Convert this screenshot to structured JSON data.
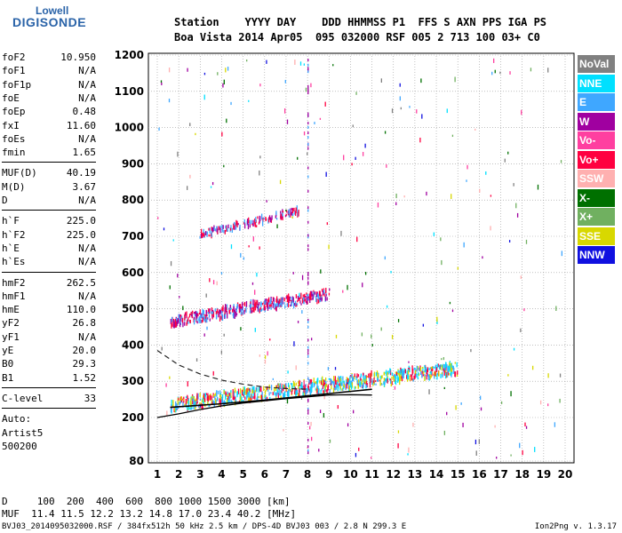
{
  "logo": {
    "line1": "Lowell",
    "line2": "DIGISONDE"
  },
  "header": {
    "row1": "Station    YYYY DAY    DDD HHMMSS P1  FFS S AXN PPS IGA PS",
    "row2": "Boa Vista 2014 Apr05  095 032000 RSF 005 2 713 100 03+ C0"
  },
  "params_group1": [
    {
      "name": "foF2",
      "value": "10.950"
    },
    {
      "name": "foF1",
      "value": "N/A"
    },
    {
      "name": "foF1p",
      "value": "N/A"
    },
    {
      "name": "foE",
      "value": "N/A"
    },
    {
      "name": "foEp",
      "value": "0.48"
    },
    {
      "name": "fxI",
      "value": "11.60"
    },
    {
      "name": "foEs",
      "value": "N/A"
    },
    {
      "name": "fmin",
      "value": "1.65"
    }
  ],
  "params_group2": [
    {
      "name": "MUF(D)",
      "value": "40.19"
    },
    {
      "name": "M(D)",
      "value": "3.67"
    },
    {
      "name": "D",
      "value": "N/A"
    }
  ],
  "params_group3": [
    {
      "name": "h`F",
      "value": "225.0"
    },
    {
      "name": "h`F2",
      "value": "225.0"
    },
    {
      "name": "h`E",
      "value": "N/A"
    },
    {
      "name": "h`Es",
      "value": "N/A"
    }
  ],
  "params_group4": [
    {
      "name": "hmF2",
      "value": "262.5"
    },
    {
      "name": "hmF1",
      "value": "N/A"
    },
    {
      "name": "hmE",
      "value": "110.0"
    },
    {
      "name": "yF2",
      "value": "26.8"
    },
    {
      "name": "yF1",
      "value": "N/A"
    },
    {
      "name": "yE",
      "value": "20.0"
    },
    {
      "name": "B0",
      "value": "29.3"
    },
    {
      "name": "B1",
      "value": "1.52"
    }
  ],
  "clevel": {
    "name": "C-level",
    "value": "33"
  },
  "auto": {
    "line1": "Auto:",
    "line2": "Artist5",
    "line3": "500200"
  },
  "muf_table": {
    "row1": "D     100  200  400  600  800 1000 1500 3000 [km]",
    "row2": "MUF  11.4 11.5 12.2 13.2 14.8 17.0 23.4 40.2 [MHz]"
  },
  "footer": {
    "left": "BVJ03_2014095032000.RSF / 384fx512h 50 kHz 2.5 km / DPS-4D BVJ03 003 / 2.8 N 299.3 E",
    "right": "Ion2Png v. 1.3.17"
  },
  "legend": [
    {
      "label": "NoVal",
      "color": "#808080"
    },
    {
      "label": "NNE",
      "color": "#00e0ff"
    },
    {
      "label": "E",
      "color": "#3fa7ff"
    },
    {
      "label": "W",
      "color": "#a000a0"
    },
    {
      "label": "Vo-",
      "color": "#ff3fa0"
    },
    {
      "label": "Vo+",
      "color": "#ff0040"
    },
    {
      "label": "SSW",
      "color": "#ffb0b0"
    },
    {
      "label": "X-",
      "color": "#007000"
    },
    {
      "label": "X+",
      "color": "#70b060"
    },
    {
      "label": "SSE",
      "color": "#d8d800"
    },
    {
      "label": "NNW",
      "color": "#1010e0"
    }
  ],
  "chart_data": {
    "type": "scatter",
    "xlim": [
      1,
      20
    ],
    "ylim": [
      80,
      1200
    ],
    "x_ticks": [
      1,
      2,
      3,
      4,
      5,
      6,
      7,
      8,
      9,
      10,
      11,
      12,
      13,
      14,
      15,
      16,
      17,
      18,
      19,
      20
    ],
    "y_ticks": [
      80,
      200,
      300,
      400,
      500,
      600,
      700,
      800,
      900,
      1000,
      1100,
      1200
    ],
    "grid": true,
    "traces": [
      {
        "name": "F2 trace",
        "color_mix": [
          "#ff0040",
          "#3fa7ff",
          "#00e0ff",
          "#d8d800"
        ],
        "x_start": 1.6,
        "x_end": 15.0,
        "y_start": 235,
        "y_end": 335,
        "spread": 18,
        "n": 900
      },
      {
        "name": "F2 2nd hop",
        "color_mix": [
          "#ff0040",
          "#3fa7ff",
          "#a000a0"
        ],
        "x_start": 1.6,
        "x_end": 9.0,
        "y_start": 465,
        "y_end": 540,
        "spread": 15,
        "n": 450
      },
      {
        "name": "F2 3rd hop",
        "color_mix": [
          "#ff0040",
          "#a000a0",
          "#3fa7ff"
        ],
        "x_start": 3.0,
        "x_end": 7.6,
        "y_start": 705,
        "y_end": 770,
        "spread": 10,
        "n": 150
      }
    ],
    "profile_line": {
      "x": [
        1,
        2,
        3,
        4,
        5,
        6,
        7,
        8,
        9,
        10,
        11
      ],
      "y": [
        200,
        210,
        222,
        232,
        240,
        246,
        252,
        257,
        262,
        263,
        262
      ]
    },
    "model_dashed": {
      "x": [
        1,
        2,
        3,
        4,
        5,
        6,
        7,
        8
      ],
      "y": [
        385,
        345,
        320,
        303,
        292,
        284,
        280,
        278
      ]
    },
    "model_solid": {
      "x": [
        1.6,
        4,
        6,
        8,
        10,
        11
      ],
      "y": [
        228,
        238,
        248,
        260,
        272,
        278
      ]
    }
  }
}
